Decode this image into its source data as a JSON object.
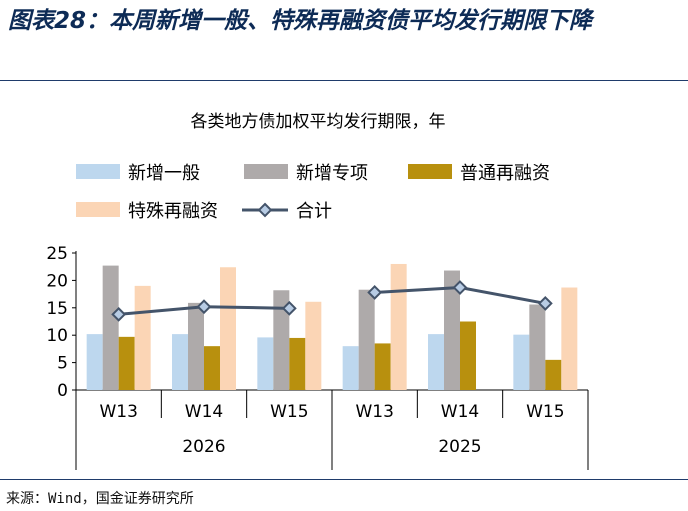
{
  "figure": {
    "title": "图表28：本周新增一般、特殊再融资债平均发行期限下降",
    "source": "来源：Wind，国金证券研究所"
  },
  "chart_data": {
    "type": "bar",
    "title": "各类地方债加权平均发行期限，年",
    "categories": [
      "W13",
      "W14",
      "W15",
      "W13",
      "W14",
      "W15"
    ],
    "groups": [
      {
        "label": "2026",
        "categories": [
          "W13",
          "W14",
          "W15"
        ]
      },
      {
        "label": "2025",
        "categories": [
          "W13",
          "W14",
          "W15"
        ]
      }
    ],
    "series": [
      {
        "name": "新增一般",
        "kind": "bar",
        "color": "#bdd7ee",
        "values": [
          10.2,
          10.2,
          9.6,
          8.0,
          10.2,
          10.1
        ]
      },
      {
        "name": "新增专项",
        "kind": "bar",
        "color": "#aeaaaa",
        "values": [
          22.7,
          15.9,
          18.2,
          18.3,
          21.8,
          15.6
        ]
      },
      {
        "name": "普通再融资",
        "kind": "bar",
        "color": "#b8900e",
        "values": [
          9.7,
          8.0,
          9.5,
          8.5,
          12.5,
          5.5
        ]
      },
      {
        "name": "特殊再融资",
        "kind": "bar",
        "color": "#fbd5b5",
        "values": [
          19.0,
          22.4,
          16.1,
          23.0,
          null,
          18.7
        ]
      },
      {
        "name": "合计",
        "kind": "line",
        "color": "#44546a",
        "marker_fill": "#b8cce4",
        "values": [
          13.8,
          15.2,
          14.9,
          17.8,
          18.7,
          15.8
        ]
      }
    ],
    "ylim": [
      0,
      25
    ],
    "yticks": [
      0,
      5,
      10,
      15,
      20,
      25
    ],
    "legend_position": "top",
    "grid": false
  }
}
